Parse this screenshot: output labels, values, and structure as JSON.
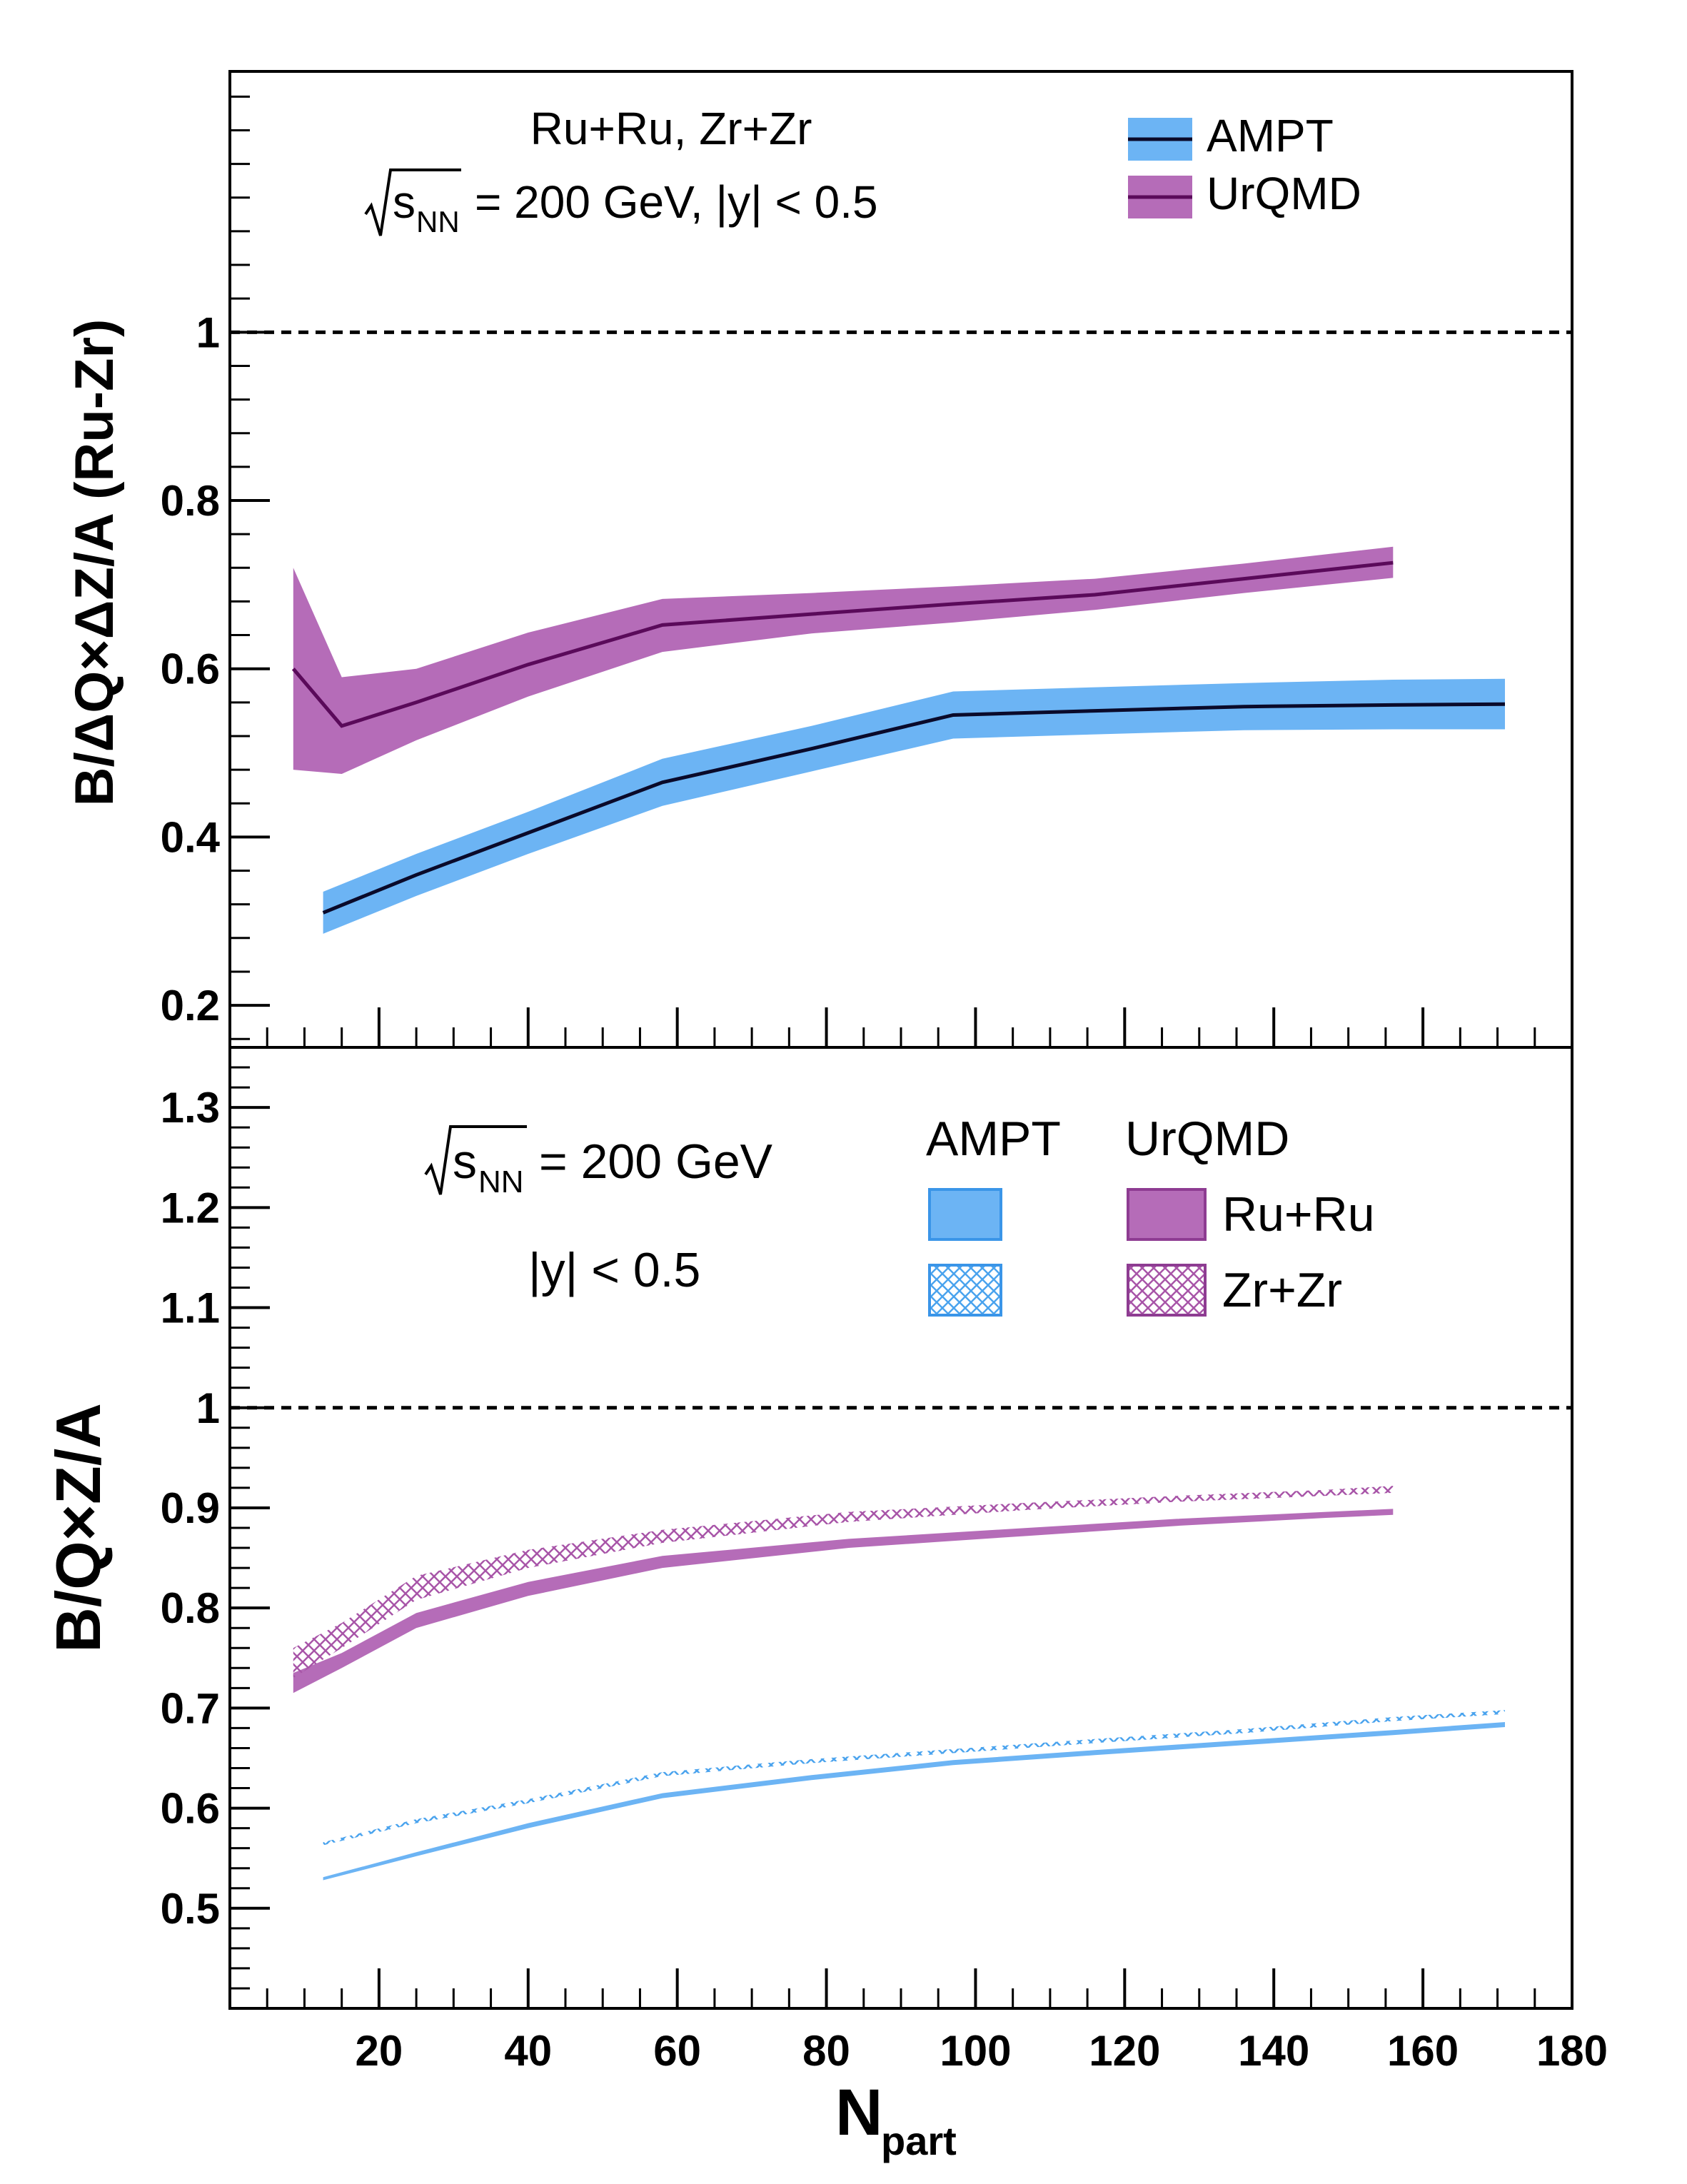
{
  "chart_data": [
    {
      "type": "area",
      "panel": "top",
      "ylabel": "B/ΔQ×ΔZ/A (Ru-Zr)",
      "ylim": [
        0.15,
        1.31
      ],
      "xlim": [
        0,
        180
      ],
      "yticks": [
        0.2,
        0.4,
        0.6,
        0.8,
        1
      ],
      "ytick_labels": [
        "0.2",
        "0.4",
        "0.6",
        "0.8",
        "1"
      ],
      "reference_line": 1,
      "annotations": {
        "line1": "Ru+Ru, Zr+Zr",
        "sqrt_s": "s",
        "sqrt_s_sub": "NN",
        "line2": "=  200 GeV, |y| < 0.5"
      },
      "legend": [
        {
          "name": "AMPT",
          "color": "#6cb4f4",
          "line": "#0a0a2a"
        },
        {
          "name": "UrQMD",
          "color": "#b56cb8",
          "line": "#5a0a5a"
        }
      ],
      "series": [
        {
          "name": "AMPT",
          "x": [
            12.5,
            25,
            40,
            58,
            78,
            97,
            116,
            136,
            156,
            171
          ],
          "y": [
            0.31,
            0.355,
            0.405,
            0.465,
            0.505,
            0.545,
            0.55,
            0.555,
            0.557,
            0.558
          ],
          "lo": [
            0.285,
            0.33,
            0.38,
            0.437,
            0.478,
            0.517,
            0.522,
            0.527,
            0.528,
            0.528
          ],
          "hi": [
            0.335,
            0.38,
            0.43,
            0.493,
            0.532,
            0.573,
            0.578,
            0.583,
            0.587,
            0.588
          ]
        },
        {
          "name": "UrQMD",
          "x": [
            8.5,
            15,
            25,
            40,
            58,
            78,
            97,
            116,
            136,
            156
          ],
          "y": [
            0.6,
            0.532,
            0.56,
            0.605,
            0.652,
            0.665,
            0.677,
            0.688,
            0.707,
            0.726
          ],
          "lo": [
            0.48,
            0.475,
            0.515,
            0.567,
            0.62,
            0.642,
            0.655,
            0.67,
            0.69,
            0.708
          ],
          "hi": [
            0.72,
            0.59,
            0.6,
            0.643,
            0.683,
            0.69,
            0.698,
            0.707,
            0.725,
            0.745
          ]
        }
      ]
    },
    {
      "type": "area",
      "panel": "bottom",
      "xlabel": "N",
      "xlabel_sub": "part",
      "ylabel": "B/Q×Z/A",
      "ylim": [
        0.4,
        1.36
      ],
      "xlim": [
        0,
        180
      ],
      "xticks": [
        20,
        40,
        60,
        80,
        100,
        120,
        140,
        160,
        180
      ],
      "xtick_labels": [
        "20",
        "40",
        "60",
        "80",
        "100",
        "120",
        "140",
        "160",
        "180"
      ],
      "yticks": [
        0.5,
        0.6,
        0.7,
        0.8,
        0.9,
        1,
        1.1,
        1.2,
        1.3
      ],
      "ytick_labels": [
        "0.5",
        "0.6",
        "0.7",
        "0.8",
        "0.9",
        "1",
        "1.1",
        "1.2",
        "1.3"
      ],
      "reference_line": 1,
      "annotations": {
        "sqrt_s": "s",
        "sqrt_s_sub": "NN",
        "energy": "=  200 GeV",
        "rapidity": "|y| < 0.5"
      },
      "legend": {
        "col_ampt": "AMPT",
        "col_urqmd": "UrQMD",
        "row_ru": "Ru+Ru",
        "row_zr": "Zr+Zr",
        "ampt_color": "#6cb4f4",
        "urqmd_color": "#b56cb8"
      },
      "series": [
        {
          "name": "UrQMD Ru+Ru",
          "x": [
            8.5,
            15,
            25,
            40,
            58,
            83,
            107,
            127,
            147,
            156
          ],
          "lo": [
            0.715,
            0.74,
            0.78,
            0.812,
            0.84,
            0.86,
            0.872,
            0.882,
            0.89,
            0.893
          ],
          "hi": [
            0.735,
            0.755,
            0.795,
            0.826,
            0.852,
            0.869,
            0.88,
            0.889,
            0.896,
            0.899
          ]
        },
        {
          "name": "UrQMD Zr+Zr",
          "x": [
            8.5,
            15,
            25,
            40,
            58,
            83,
            107,
            127,
            147,
            156
          ],
          "lo": [
            0.73,
            0.76,
            0.808,
            0.84,
            0.865,
            0.886,
            0.898,
            0.906,
            0.912,
            0.915
          ],
          "hi": [
            0.76,
            0.785,
            0.832,
            0.858,
            0.878,
            0.896,
            0.905,
            0.912,
            0.918,
            0.922
          ]
        },
        {
          "name": "AMPT Ru+Ru",
          "x": [
            12.5,
            25,
            40,
            58,
            78,
            97,
            116,
            136,
            156,
            171
          ],
          "lo": [
            0.528,
            0.552,
            0.58,
            0.61,
            0.628,
            0.643,
            0.653,
            0.663,
            0.673,
            0.681
          ],
          "hi": [
            0.531,
            0.556,
            0.585,
            0.615,
            0.633,
            0.648,
            0.658,
            0.668,
            0.678,
            0.686
          ]
        },
        {
          "name": "AMPT Zr+Zr",
          "x": [
            12.5,
            25,
            40,
            58,
            78,
            97,
            116,
            136,
            156,
            171
          ],
          "lo": [
            0.563,
            0.585,
            0.605,
            0.632,
            0.645,
            0.655,
            0.665,
            0.675,
            0.687,
            0.694
          ],
          "hi": [
            0.566,
            0.589,
            0.609,
            0.636,
            0.649,
            0.659,
            0.669,
            0.679,
            0.691,
            0.698
          ]
        }
      ]
    }
  ]
}
